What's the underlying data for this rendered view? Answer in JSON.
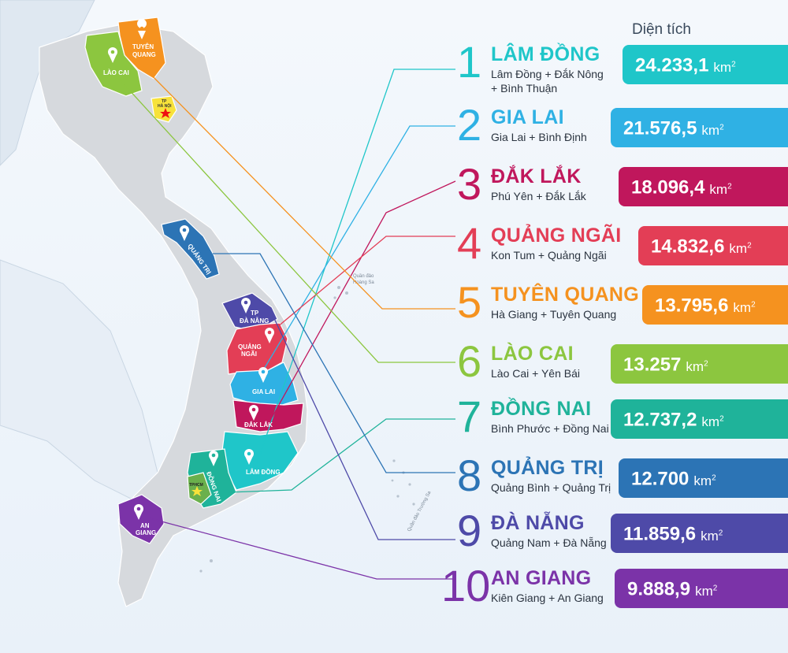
{
  "header": {
    "area_label": "Diện tích"
  },
  "unit": {
    "base": "km",
    "exp": "2"
  },
  "rankings": [
    {
      "rank": "1",
      "name": "LÂM ĐỒNG",
      "merged_line1": "Lâm Đồng + Đắk Nông",
      "merged_line2": "+ Bình Thuận",
      "area": "24.233,1",
      "color": "#1fc6c9"
    },
    {
      "rank": "2",
      "name": "GIA LAI",
      "merged_line1": "Gia Lai + Bình Định",
      "merged_line2": "",
      "area": "21.576,5",
      "color": "#2fb1e4"
    },
    {
      "rank": "3",
      "name": "ĐẮK LẮK",
      "merged_line1": "Phú Yên + Đắk Lắk",
      "merged_line2": "",
      "area": "18.096,4",
      "color": "#c0175c"
    },
    {
      "rank": "4",
      "name": "QUẢNG NGÃI",
      "merged_line1": "Kon Tum + Quảng Ngãi",
      "merged_line2": "",
      "area": "14.832,6",
      "color": "#e33e56"
    },
    {
      "rank": "5",
      "name": "TUYÊN QUANG",
      "merged_line1": "Hà Giang + Tuyên Quang",
      "merged_line2": "",
      "area": "13.795,6",
      "color": "#f5921f"
    },
    {
      "rank": "6",
      "name": "LÀO CAI",
      "merged_line1": "Lào Cai + Yên Bái",
      "merged_line2": "",
      "area": "13.257",
      "color": "#8cc63f"
    },
    {
      "rank": "7",
      "name": "ĐỒNG NAI",
      "merged_line1": "Bình Phước + Đồng Nai",
      "merged_line2": "",
      "area": "12.737,2",
      "color": "#1fb39a"
    },
    {
      "rank": "8",
      "name": "QUẢNG TRỊ",
      "merged_line1": "Quảng Bình + Quảng Trị",
      "merged_line2": "",
      "area": "12.700",
      "color": "#2c74b5"
    },
    {
      "rank": "9",
      "name": "ĐÀ NẴNG",
      "merged_line1": "Quảng Nam + Đà Nẵng",
      "merged_line2": "",
      "area": "11.859,6",
      "color": "#4e4aa8"
    },
    {
      "rank": "10",
      "name": "AN GIANG",
      "merged_line1": "Kiên Giang + An Giang",
      "merged_line2": "",
      "area": "9.888,9",
      "color": "#7b33a8"
    }
  ],
  "map_labels": {
    "tuyen_quang": [
      "TUYÊN",
      "QUANG"
    ],
    "lao_cai": "LÀO CAI",
    "ha_noi": [
      "TP",
      "HÀ NỘI"
    ],
    "quang_tri": "QUẢNG TRỊ",
    "da_nang": [
      "TP",
      "ĐÀ NẴNG"
    ],
    "quang_ngai": [
      "QUẢNG",
      "NGÃI"
    ],
    "gia_lai": "GIA LAI",
    "dak_lak": "ĐẮK LẮK",
    "lam_dong": "LÂM ĐỒNG",
    "dong_nai": "ĐỒNG NAI",
    "tphcm": "TPHCM",
    "an_giang": [
      "AN",
      "GIANG"
    ],
    "hoang_sa": [
      "Quần đảo",
      "Hoàng Sa"
    ],
    "truong_sa": "Quần đảo Trường Sa"
  }
}
